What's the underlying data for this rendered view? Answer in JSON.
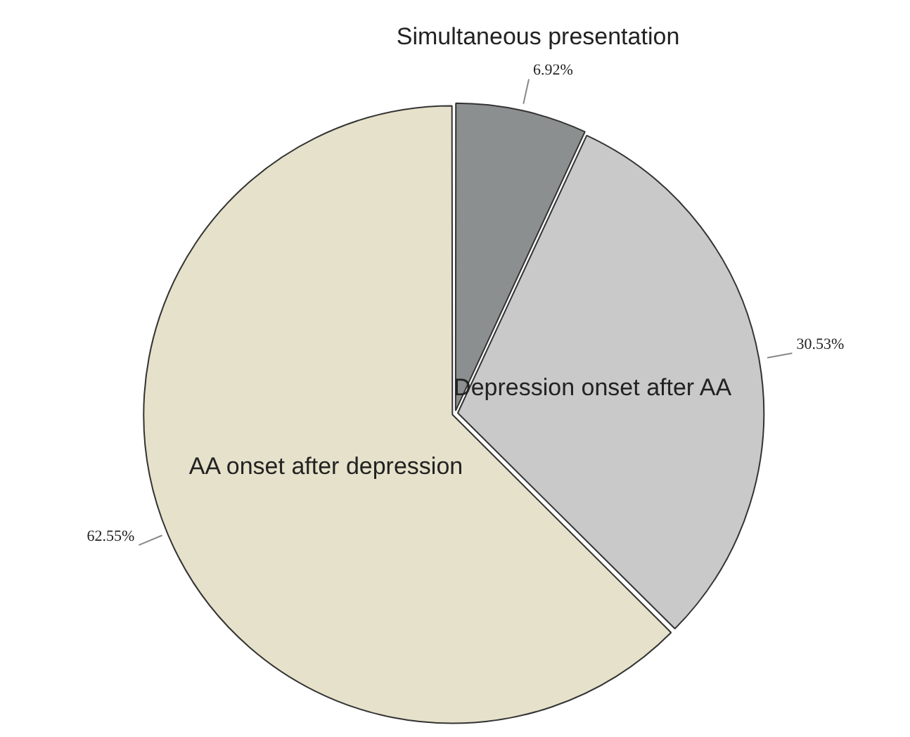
{
  "chart_data": {
    "type": "pie",
    "categories": [
      "Simultaneous presentation",
      "Depression onset after AA",
      "AA onset after depression"
    ],
    "values": [
      6.92,
      30.53,
      62.55
    ],
    "value_labels": [
      "6.92%",
      "30.53%",
      "62.55%"
    ],
    "colors": [
      "#8c8f8f",
      "#c9c9c9",
      "#e6e1ca"
    ]
  }
}
